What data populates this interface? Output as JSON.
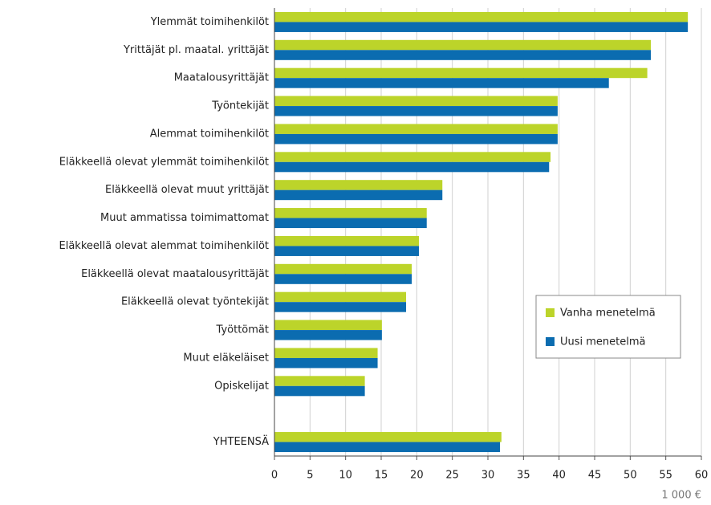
{
  "chart_data": {
    "type": "hbar",
    "categories": [
      "Ylemmät toimihenkilöt",
      "Yrittäjät pl. maatal. yrittäjät",
      "Maatalousyrittäjät",
      "Työntekijät",
      "Alemmat toimihenkilöt",
      "Eläkkeellä olevat ylemmät toimihenkilöt",
      "Eläkkeellä olevat muut yrittäjät",
      "Muut ammatissa toimimattomat",
      "Eläkkeellä olevat alemmat toimihenkilöt",
      "Eläkkeellä olevat maatalousyrittäjät",
      "Eläkkeellä olevat työntekijät",
      "Työttömät",
      "Muut eläkeläiset",
      "Opiskelijat",
      null,
      "YHTEENSÄ"
    ],
    "series": [
      {
        "name": "Vanha menetelmä",
        "color": "#bcd42a",
        "values": [
          58.1,
          52.9,
          52.4,
          39.8,
          39.8,
          38.8,
          23.6,
          21.4,
          20.3,
          19.3,
          18.5,
          15.1,
          14.5,
          12.7,
          null,
          31.9
        ]
      },
      {
        "name": "Uusi menetelmä",
        "color": "#0b6cb0",
        "values": [
          58.1,
          52.9,
          47.0,
          39.8,
          39.8,
          38.6,
          23.6,
          21.4,
          20.3,
          19.3,
          18.5,
          15.1,
          14.5,
          12.7,
          null,
          31.7
        ]
      }
    ],
    "xlim": [
      0,
      60
    ],
    "xticks": [
      0,
      5,
      10,
      15,
      20,
      25,
      30,
      35,
      40,
      45,
      50,
      55,
      60
    ],
    "x_label": "1 000 €",
    "grid": true,
    "legend": "lower right"
  }
}
